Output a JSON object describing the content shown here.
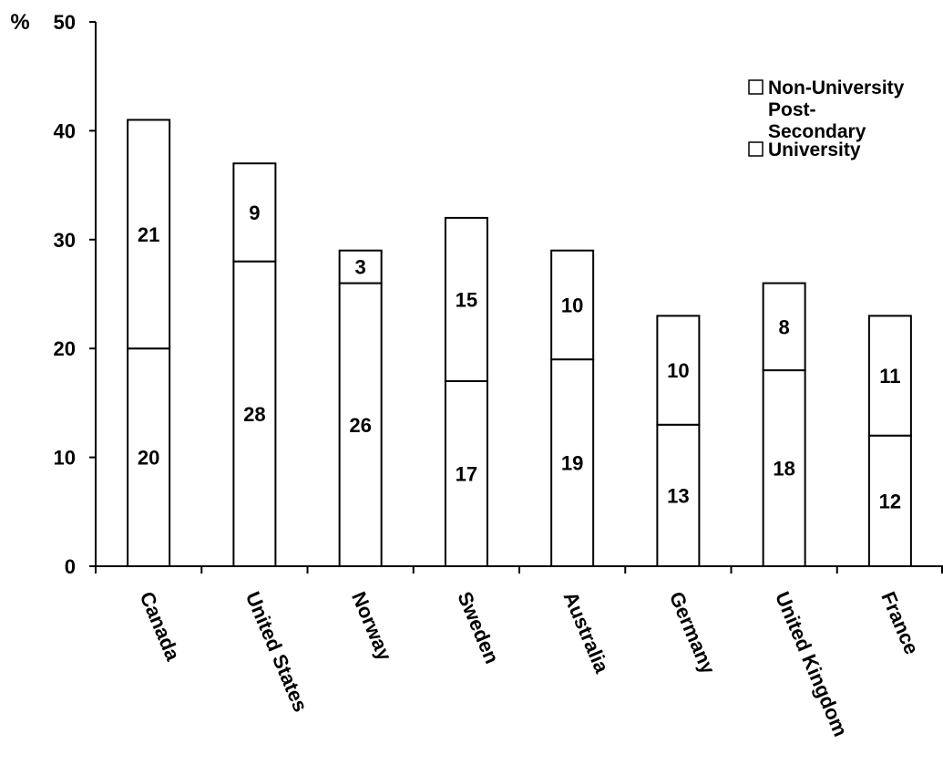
{
  "chart_data": {
    "type": "bar",
    "stacked": true,
    "ylabel": "%",
    "ylim": [
      0,
      50
    ],
    "yticks": [
      0,
      10,
      20,
      30,
      40,
      50
    ],
    "grid": false,
    "legend_position": "top-right",
    "categories": [
      "Canada",
      "United States",
      "Norway",
      "Sweden",
      "Australia",
      "Germany",
      "United Kingdom",
      "France"
    ],
    "series": [
      {
        "name": "University",
        "values": [
          20,
          28,
          26,
          17,
          19,
          13,
          18,
          12
        ],
        "labels": [
          "20",
          "28",
          "26",
          "17",
          "19",
          "13",
          "18",
          "12"
        ],
        "color": "#ffffff"
      },
      {
        "name": "Non-University Post-Secondary",
        "values": [
          21,
          9,
          3,
          15,
          10,
          10,
          8,
          11
        ],
        "labels": [
          "21",
          "9",
          "3",
          "15",
          "10",
          "10",
          "8",
          "11"
        ],
        "color": "#ffffff"
      }
    ],
    "legend": [
      {
        "series": "Non-University Post-Secondary",
        "lines": [
          "Non-University",
          "Post-",
          "Secondary"
        ]
      },
      {
        "series": "University",
        "lines": [
          "University"
        ]
      }
    ],
    "bar_stroke": "#000000"
  }
}
